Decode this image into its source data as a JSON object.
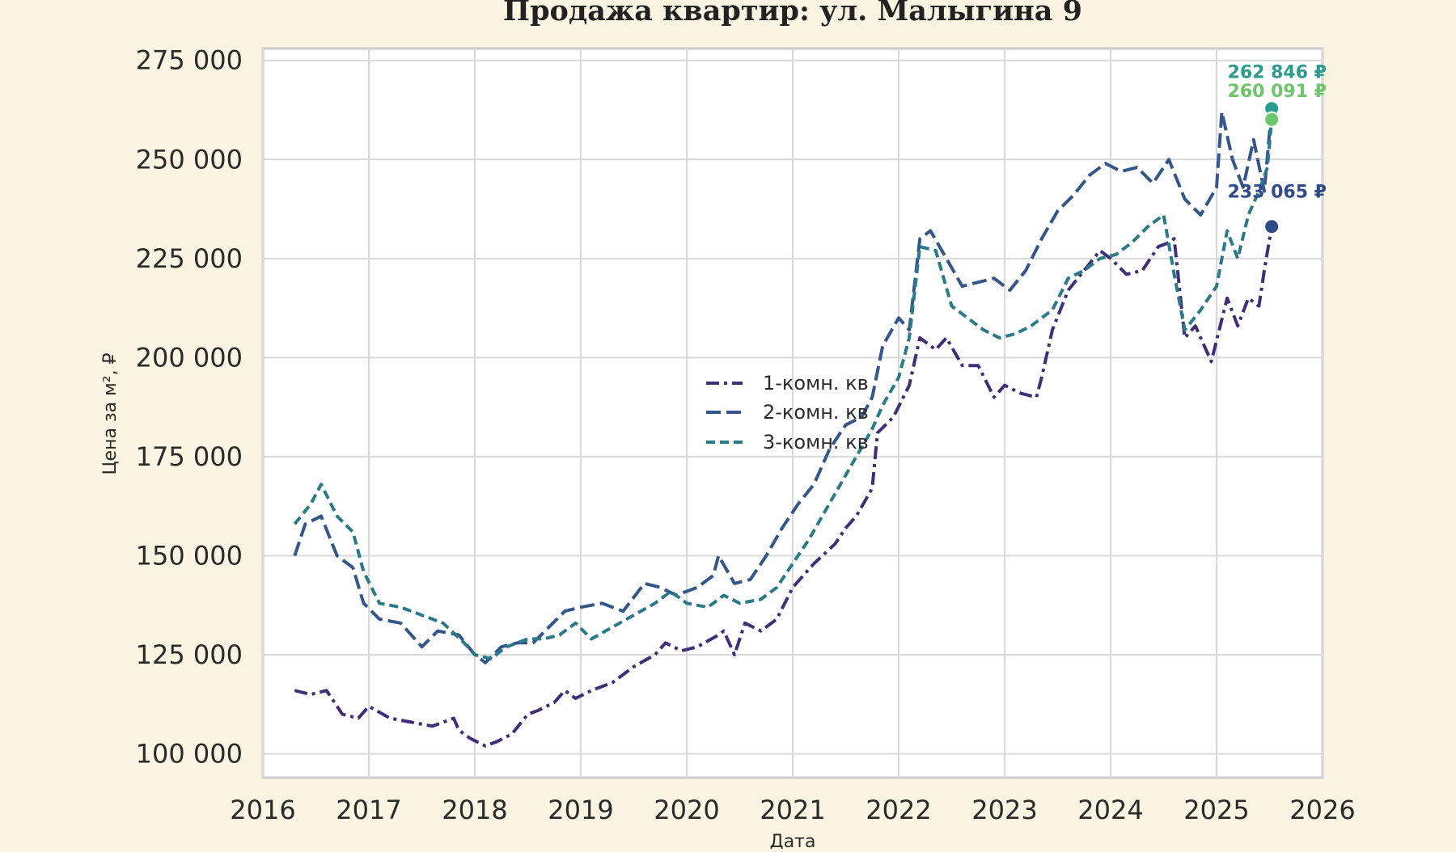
{
  "chart_data": {
    "type": "line",
    "title": "Продажа квартир: ул. Малыгина 9",
    "xlabel": "Дата",
    "ylabel": "Цена за м², ₽",
    "xlim": [
      2016.0,
      2026.0
    ],
    "ylim": [
      94000,
      278000
    ],
    "x_ticks": [
      "2016",
      "2017",
      "2018",
      "2019",
      "2020",
      "2021",
      "2022",
      "2023",
      "2024",
      "2025",
      "2026"
    ],
    "y_ticks": [
      "100 000",
      "125 000",
      "150 000",
      "175 000",
      "200 000",
      "225 000",
      "250 000",
      "275 000"
    ],
    "y_tick_values": [
      100000,
      125000,
      150000,
      175000,
      200000,
      225000,
      250000,
      275000
    ],
    "grid": true,
    "legend_position": "center",
    "series": [
      {
        "name": "1-комн. кв",
        "color": "#3e2f78",
        "dash": "dash-dot",
        "end_label": "233 065 ₽",
        "end_value": 233065,
        "x": [
          2016.3,
          2016.45,
          2016.6,
          2016.75,
          2016.9,
          2017.0,
          2017.2,
          2017.4,
          2017.6,
          2017.8,
          2017.85,
          2017.95,
          2018.1,
          2018.2,
          2018.35,
          2018.5,
          2018.6,
          2018.75,
          2018.85,
          2018.95,
          2019.1,
          2019.3,
          2019.5,
          2019.7,
          2019.8,
          2019.95,
          2020.1,
          2020.3,
          2020.35,
          2020.45,
          2020.55,
          2020.7,
          2020.85,
          2021.0,
          2021.2,
          2021.4,
          2021.5,
          2021.6,
          2021.75,
          2021.8,
          2021.95,
          2022.1,
          2022.2,
          2022.35,
          2022.45,
          2022.6,
          2022.75,
          2022.9,
          2023.0,
          2023.15,
          2023.3,
          2023.35,
          2023.45,
          2023.6,
          2023.75,
          2023.9,
          2024.0,
          2024.15,
          2024.3,
          2024.45,
          2024.55,
          2024.6,
          2024.7,
          2024.8,
          2024.95,
          2025.1,
          2025.2,
          2025.3,
          2025.4,
          2025.45,
          2025.52
        ],
        "y": [
          116000,
          115000,
          116000,
          110000,
          109000,
          112000,
          109000,
          108000,
          107000,
          109000,
          106000,
          104000,
          102000,
          103000,
          105000,
          110000,
          111000,
          113000,
          116000,
          114000,
          116000,
          118000,
          122000,
          125000,
          128000,
          126000,
          127000,
          130000,
          131000,
          125000,
          133000,
          131000,
          134000,
          142000,
          148000,
          153000,
          157000,
          160000,
          167000,
          181000,
          185000,
          193000,
          205000,
          202000,
          205000,
          198000,
          198000,
          190000,
          193000,
          191000,
          190000,
          195000,
          207000,
          217000,
          222000,
          227000,
          225000,
          221000,
          222000,
          228000,
          229000,
          230000,
          205000,
          208000,
          199000,
          215000,
          208000,
          215000,
          213000,
          222000,
          233065
        ]
      },
      {
        "name": "2-комн. кв",
        "color": "#34568b",
        "dash": "long-dash",
        "end_label": "262 846 ₽",
        "end_value": 262846,
        "x": [
          2016.3,
          2016.4,
          2016.55,
          2016.7,
          2016.85,
          2016.95,
          2017.1,
          2017.3,
          2017.5,
          2017.65,
          2017.85,
          2018.0,
          2018.1,
          2018.25,
          2018.4,
          2018.55,
          2018.7,
          2018.85,
          2019.0,
          2019.2,
          2019.4,
          2019.6,
          2019.75,
          2019.9,
          2020.1,
          2020.25,
          2020.3,
          2020.45,
          2020.6,
          2020.75,
          2020.9,
          2021.05,
          2021.2,
          2021.35,
          2021.5,
          2021.65,
          2021.75,
          2021.85,
          2022.0,
          2022.1,
          2022.2,
          2022.3,
          2022.45,
          2022.6,
          2022.75,
          2022.9,
          2023.05,
          2023.2,
          2023.35,
          2023.5,
          2023.65,
          2023.8,
          2023.95,
          2024.1,
          2024.25,
          2024.4,
          2024.55,
          2024.7,
          2024.85,
          2025.0,
          2025.05,
          2025.15,
          2025.25,
          2025.35,
          2025.45,
          2025.52
        ],
        "y": [
          150000,
          158000,
          160000,
          150000,
          147000,
          138000,
          134000,
          133000,
          127000,
          131000,
          130000,
          125000,
          123000,
          127000,
          128000,
          128000,
          132000,
          136000,
          137000,
          138000,
          136000,
          143000,
          142000,
          140000,
          142000,
          145000,
          150000,
          143000,
          144000,
          150000,
          157000,
          163000,
          168000,
          177000,
          183000,
          185000,
          190000,
          203000,
          210000,
          207000,
          230000,
          232000,
          225000,
          218000,
          219000,
          220000,
          217000,
          222000,
          230000,
          237000,
          241000,
          246000,
          249000,
          247000,
          248000,
          244000,
          250000,
          240000,
          236000,
          243000,
          262000,
          250000,
          243000,
          255000,
          242000,
          262846
        ]
      },
      {
        "name": "3-комн. кв",
        "color": "#2b7a89",
        "dash": "short-dash",
        "end_label": "260 091 ₽",
        "end_value": 260091,
        "x": [
          2016.3,
          2016.45,
          2016.55,
          2016.7,
          2016.85,
          2016.95,
          2017.1,
          2017.3,
          2017.5,
          2017.7,
          2017.9,
          2018.0,
          2018.15,
          2018.3,
          2018.5,
          2018.65,
          2018.8,
          2018.95,
          2019.1,
          2019.3,
          2019.5,
          2019.7,
          2019.85,
          2020.0,
          2020.2,
          2020.35,
          2020.5,
          2020.7,
          2020.85,
          2021.0,
          2021.15,
          2021.3,
          2021.45,
          2021.6,
          2021.75,
          2021.85,
          2022.0,
          2022.1,
          2022.2,
          2022.35,
          2022.5,
          2022.65,
          2022.8,
          2022.95,
          2023.1,
          2023.25,
          2023.35,
          2023.45,
          2023.6,
          2023.75,
          2023.9,
          2024.05,
          2024.2,
          2024.35,
          2024.5,
          2024.6,
          2024.7,
          2024.85,
          2025.0,
          2025.1,
          2025.2,
          2025.3,
          2025.4,
          2025.48,
          2025.52
        ],
        "y": [
          158000,
          163000,
          168000,
          160000,
          156000,
          146000,
          138000,
          137000,
          135000,
          133000,
          128000,
          125000,
          124000,
          127000,
          129000,
          129000,
          130000,
          133000,
          129000,
          132000,
          135000,
          138000,
          141000,
          138000,
          137000,
          140000,
          138000,
          139000,
          142000,
          148000,
          154000,
          161000,
          168000,
          175000,
          182000,
          188000,
          195000,
          205000,
          228000,
          227000,
          213000,
          210000,
          207000,
          205000,
          206000,
          208000,
          210000,
          212000,
          220000,
          222000,
          225000,
          226000,
          229000,
          233000,
          236000,
          221000,
          207000,
          212000,
          218000,
          232000,
          225000,
          236000,
          242000,
          248000,
          260091
        ]
      }
    ],
    "end_markers": [
      {
        "value": 262846,
        "color": "#2a9d8f"
      },
      {
        "value": 260091,
        "color": "#6cc66a"
      },
      {
        "value": 233065,
        "color": "#2f4b8a"
      }
    ]
  }
}
